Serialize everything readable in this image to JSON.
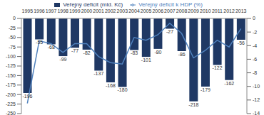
{
  "chart_data": {
    "type": "bar",
    "categories": [
      "1995",
      "1996",
      "1997",
      "1998",
      "1999",
      "2000",
      "2001",
      "2002",
      "2003",
      "2004",
      "2005",
      "2006",
      "2007",
      "2008",
      "2009",
      "2010",
      "2011",
      "2012",
      "2013"
    ],
    "series": [
      {
        "name": "Veřejný deficit (mld. Kč)",
        "type": "bar",
        "color": "#1f3864",
        "data_labels": true,
        "values": [
          -196,
          -55,
          -68,
          -99,
          -77,
          -82,
          -137,
          -168,
          -180,
          -83,
          -101,
          -80,
          -27,
          -86,
          -218,
          -179,
          -122,
          -162,
          -56
        ]
      },
      {
        "name": "Veřejný deficit k HDP (%)",
        "type": "line",
        "color": "#4f81bd",
        "axis": "y2",
        "marker": "none",
        "values": [
          -12.5,
          -3.3,
          -3.7,
          -5.0,
          -3.7,
          -3.7,
          -5.6,
          -6.5,
          -6.7,
          -2.8,
          -3.2,
          -2.4,
          -0.7,
          -2.2,
          -5.8,
          -4.7,
          -3.2,
          -4.2,
          -1.5
        ]
      }
    ],
    "ylim": [
      -250,
      0
    ],
    "yticks": [
      -250,
      -225,
      -200,
      -175,
      -150,
      -125,
      -100,
      -75,
      -50,
      -25,
      0
    ],
    "y2lim": [
      -14,
      0
    ],
    "y2ticks": [
      -14,
      -12,
      -10,
      -8,
      -6,
      -4,
      -2,
      0
    ],
    "grid": false,
    "legend": "top"
  }
}
